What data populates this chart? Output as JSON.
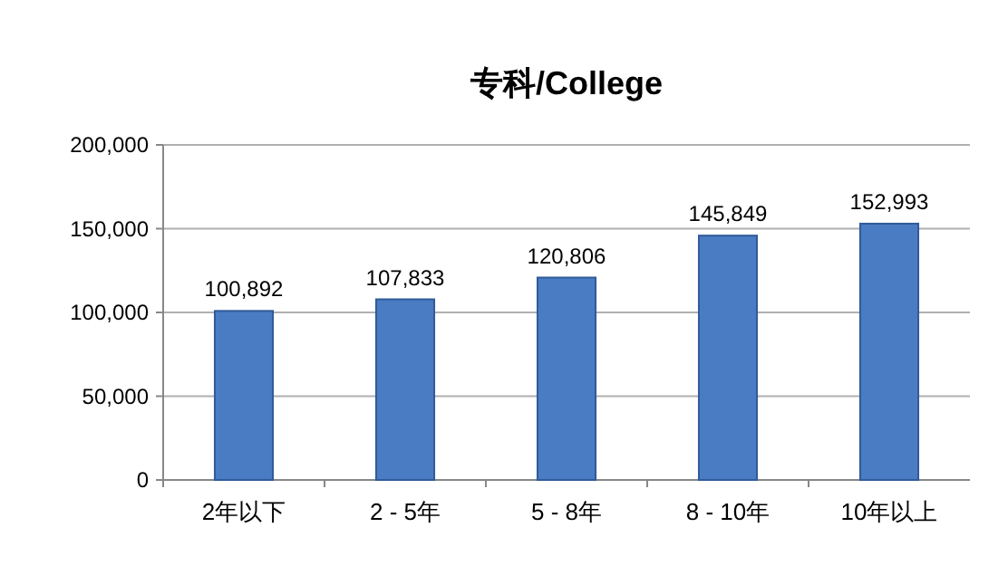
{
  "chart_data": {
    "type": "bar",
    "title": "专科/College",
    "categories": [
      "2年以下",
      "2 - 5年",
      "5 - 8年",
      "8 - 10年",
      "10年以上"
    ],
    "values": [
      100892,
      107833,
      120806,
      145849,
      152993
    ],
    "value_labels": [
      "100,892",
      "107,833",
      "120,806",
      "145,849",
      "152,993"
    ],
    "color": "#4a7cc3",
    "ylim": [
      0,
      200000
    ],
    "yticks": [
      {
        "value": 0,
        "label": "0"
      },
      {
        "value": 50000,
        "label": "50,000"
      },
      {
        "value": 100000,
        "label": "100,000"
      },
      {
        "value": 150000,
        "label": "150,000"
      },
      {
        "value": 200000,
        "label": "200,000"
      }
    ],
    "grid": "y"
  }
}
